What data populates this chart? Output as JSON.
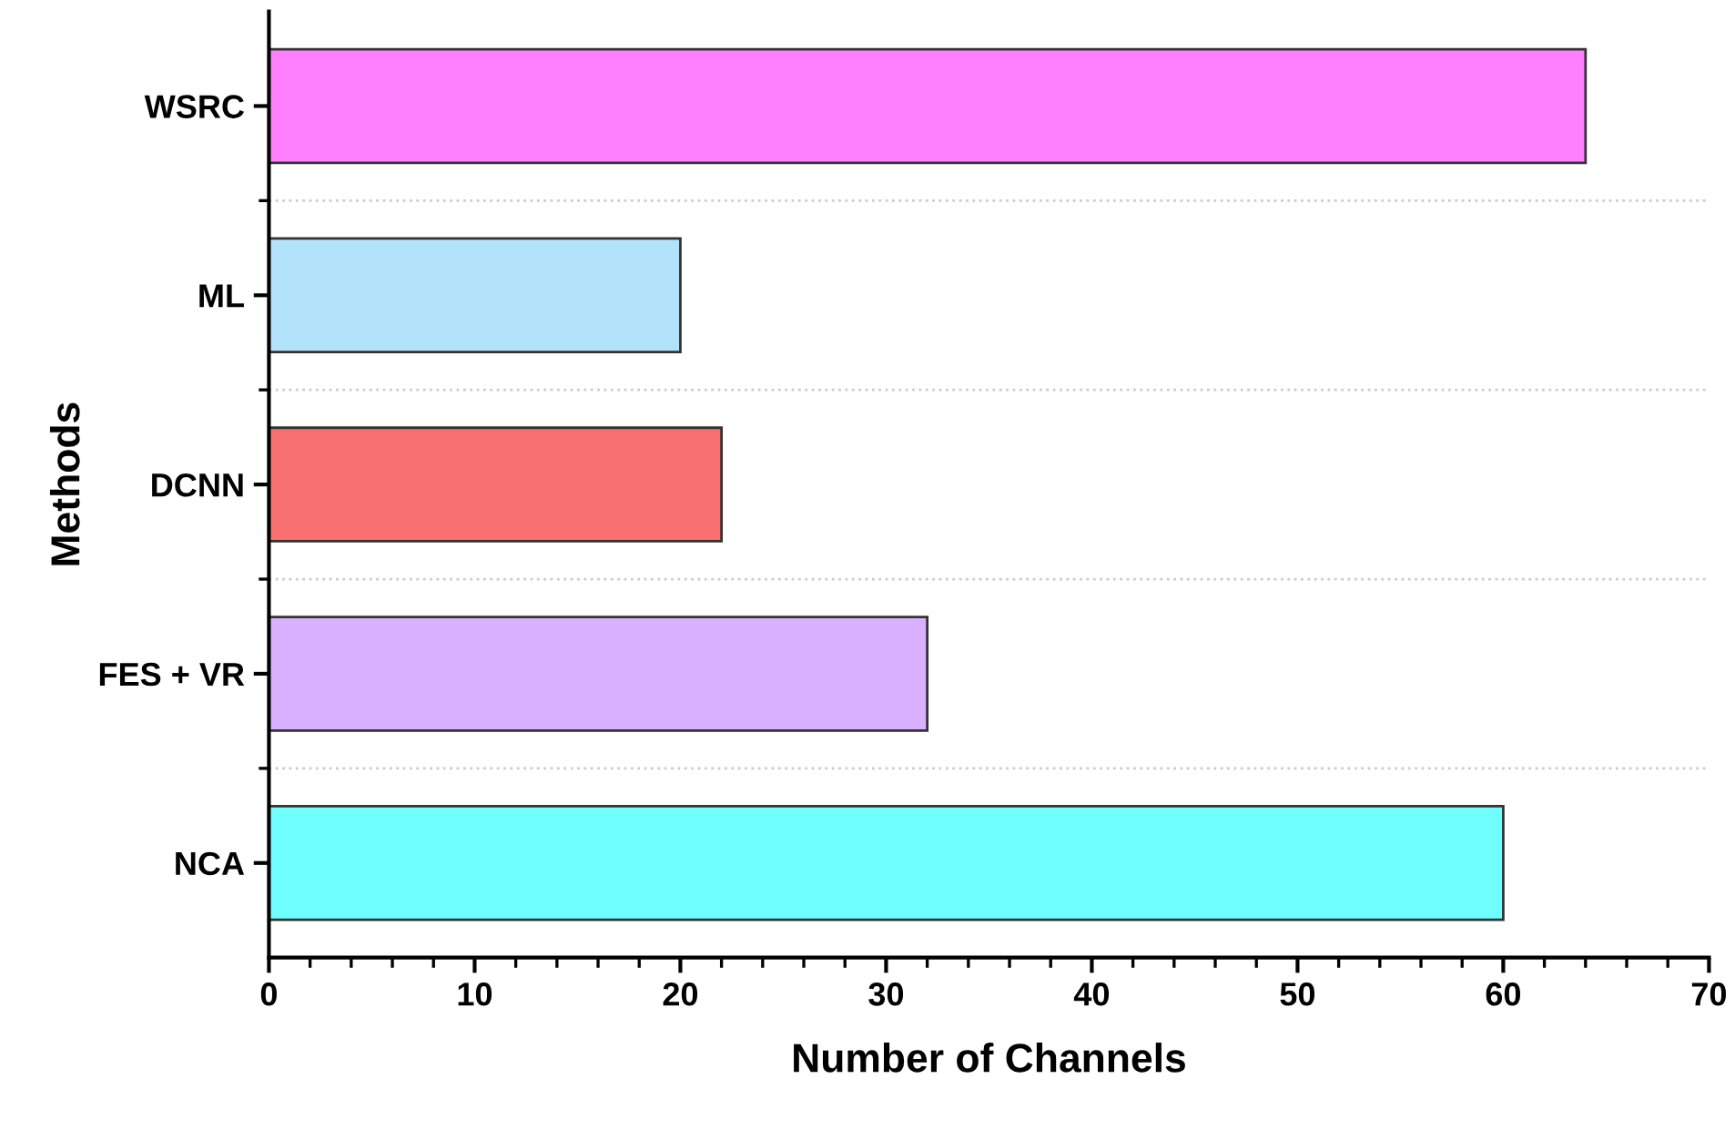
{
  "chart_data": {
    "type": "bar",
    "orientation": "horizontal",
    "xlabel": "Number of Channels",
    "ylabel": "Methods",
    "categories": [
      "WSRC",
      "ML",
      "DCNN",
      "FES + VR",
      "NCA"
    ],
    "values": [
      64,
      20,
      22,
      32,
      60
    ],
    "colors": [
      "#ff80ff",
      "#b3e3fb",
      "#f87070",
      "#d9b0ff",
      "#70ffff"
    ],
    "xlim": [
      0,
      70
    ],
    "xticks": [
      0,
      10,
      20,
      30,
      40,
      50,
      60,
      70
    ],
    "grid": "y"
  }
}
